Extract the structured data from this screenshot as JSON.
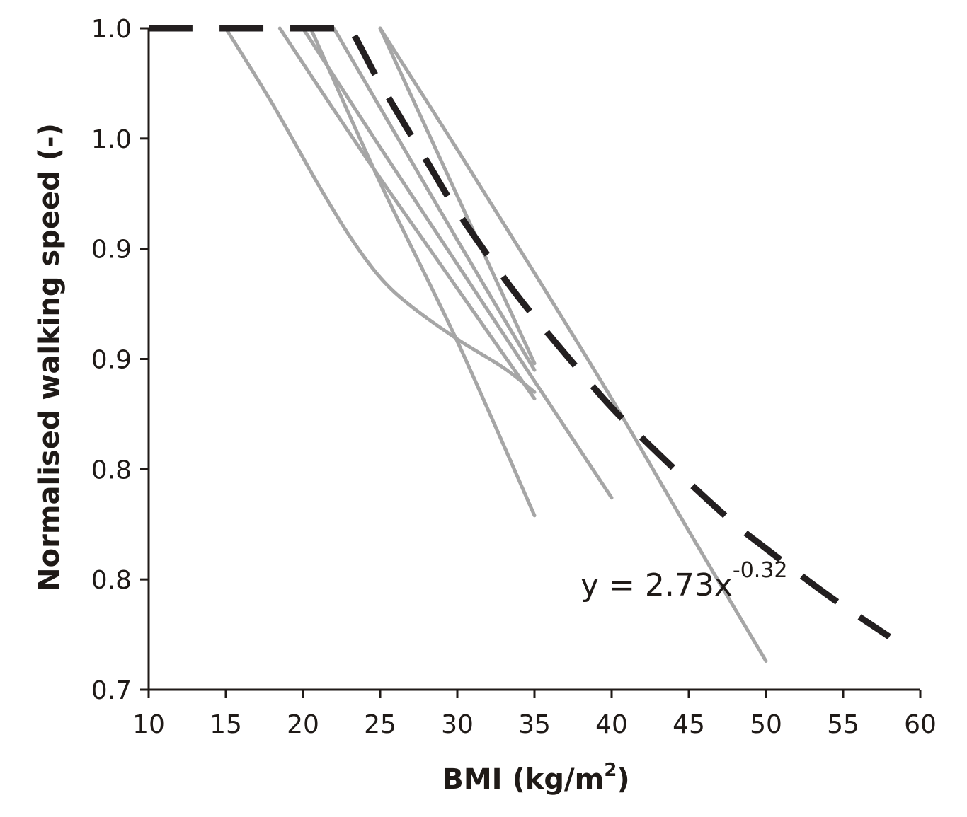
{
  "chart_data": {
    "type": "line",
    "xlabel": "BMI (kg/m",
    "xlabel_sup": "2",
    "xlabel_close": ")",
    "ylabel": "Normalised walking speed (-)",
    "xlim": [
      10,
      60
    ],
    "ylim": [
      0.7,
      1.0
    ],
    "x_ticks": [
      10,
      15,
      20,
      25,
      30,
      35,
      40,
      45,
      50,
      55,
      60
    ],
    "x_tick_labels": [
      "10",
      "15",
      "20",
      "25",
      "30",
      "35",
      "40",
      "45",
      "50",
      "55",
      "60"
    ],
    "y_ticks": [
      0.7,
      0.75,
      0.8,
      0.85,
      0.9,
      0.95,
      1.0
    ],
    "y_tick_labels": [
      "0.7",
      "0.8",
      "0.8",
      "0.9",
      "0.9",
      "1.0",
      "1.0"
    ],
    "grid": false,
    "series": [
      {
        "x": [
          15,
          18,
          21,
          23,
          25,
          27,
          30,
          33,
          35
        ],
        "y": [
          1.0,
          0.966,
          0.929,
          0.906,
          0.887,
          0.874,
          0.859,
          0.846,
          0.835
        ]
      },
      {
        "x": [
          18.5,
          22,
          25,
          28,
          31,
          35
        ],
        "y": [
          1.0,
          0.963,
          0.932,
          0.902,
          0.872,
          0.832
        ]
      },
      {
        "x": [
          20.5,
          25,
          30,
          35
        ],
        "y": [
          1.0,
          0.93,
          0.858,
          0.779
        ]
      },
      {
        "x": [
          20,
          25,
          30,
          35,
          40
        ],
        "y": [
          1.0,
          0.946,
          0.893,
          0.84,
          0.787
        ]
      },
      {
        "x": [
          22,
          25,
          30,
          35
        ],
        "y": [
          1.0,
          0.964,
          0.904,
          0.845
        ]
      },
      {
        "x": [
          25,
          30,
          35
        ],
        "y": [
          1.0,
          0.924,
          0.848
        ]
      },
      {
        "x": [
          25,
          30,
          35,
          40,
          45,
          50
        ],
        "y": [
          1.0,
          0.945,
          0.889,
          0.832,
          0.772,
          0.713
        ]
      }
    ],
    "trend": {
      "equation_prefix": "y = 2.73x",
      "equation_exponent": "-0.32",
      "x": [
        10,
        12,
        15,
        18,
        20,
        22,
        23,
        25,
        28,
        30,
        33,
        35,
        38,
        40,
        42,
        45,
        48,
        50,
        53,
        55,
        58
      ],
      "y": [
        1.0,
        1.0,
        1.0,
        1.0,
        1.0,
        1.0,
        1.0,
        0.975,
        0.94,
        0.917,
        0.887,
        0.869,
        0.844,
        0.828,
        0.814,
        0.794,
        0.775,
        0.764,
        0.748,
        0.738,
        0.724
      ]
    },
    "colors": {
      "series": "#a6a6a6",
      "trend": "#231f20",
      "axis": "#1f1a17"
    }
  }
}
